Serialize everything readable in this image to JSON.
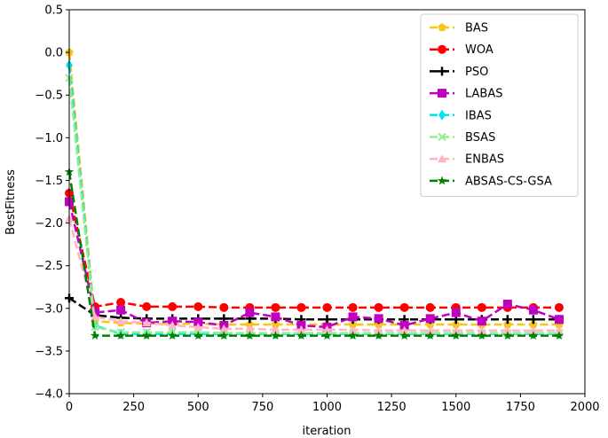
{
  "chart_data": {
    "type": "line",
    "xlabel": "iteration",
    "ylabel": "BestFitness",
    "xlim": [
      0,
      2000
    ],
    "ylim": [
      -4.0,
      0.5
    ],
    "xticks": [
      0,
      250,
      500,
      750,
      1000,
      1250,
      1500,
      1750,
      2000
    ],
    "yticks": [
      0.5,
      0.0,
      -0.5,
      -1.0,
      -1.5,
      -2.0,
      -2.5,
      -3.0,
      -3.5,
      -4.0
    ],
    "xtick_labels": [
      "0",
      "250",
      "500",
      "750",
      "1000",
      "1250",
      "1500",
      "1750",
      "2000"
    ],
    "ytick_labels": [
      "0.5",
      "0.0",
      "−0.5",
      "−1.0",
      "−1.5",
      "−2.0",
      "−2.5",
      "−3.0",
      "−3.5",
      "−4.0"
    ],
    "legend_position": "top-right",
    "grid": false,
    "x": [
      0,
      100,
      200,
      300,
      400,
      500,
      600,
      700,
      800,
      900,
      1000,
      1100,
      1200,
      1300,
      1400,
      1500,
      1600,
      1700,
      1800,
      1900
    ],
    "series": [
      {
        "name": "BAS",
        "color": "#f5c518",
        "marker": "pentagon",
        "values": [
          0.0,
          -3.15,
          -3.17,
          -3.18,
          -3.18,
          -3.18,
          -3.19,
          -3.19,
          -3.19,
          -3.19,
          -3.19,
          -3.19,
          -3.19,
          -3.19,
          -3.19,
          -3.19,
          -3.19,
          -3.19,
          -3.19,
          -3.19
        ]
      },
      {
        "name": "WOA",
        "color": "#ff0000",
        "marker": "circle",
        "values": [
          -1.65,
          -2.98,
          -2.93,
          -2.98,
          -2.98,
          -2.98,
          -2.99,
          -2.99,
          -2.99,
          -2.99,
          -2.99,
          -2.99,
          -2.99,
          -2.99,
          -2.99,
          -2.99,
          -2.99,
          -2.99,
          -2.99,
          -2.99
        ]
      },
      {
        "name": "PSO",
        "color": "#000000",
        "marker": "plus",
        "values": [
          -2.88,
          -3.08,
          -3.11,
          -3.12,
          -3.12,
          -3.12,
          -3.12,
          -3.12,
          -3.12,
          -3.13,
          -3.13,
          -3.13,
          -3.13,
          -3.13,
          -3.13,
          -3.13,
          -3.13,
          -3.13,
          -3.13,
          -3.13
        ]
      },
      {
        "name": "LABAS",
        "color": "#c000c0",
        "marker": "square",
        "values": [
          -1.75,
          -3.05,
          -3.02,
          -3.17,
          -3.15,
          -3.16,
          -3.2,
          -3.05,
          -3.1,
          -3.2,
          -3.22,
          -3.1,
          -3.12,
          -3.2,
          -3.12,
          -3.05,
          -3.15,
          -2.95,
          -3.02,
          -3.13
        ]
      },
      {
        "name": "IBAS",
        "color": "#00e5ee",
        "marker": "diamond",
        "values": [
          -0.15,
          -3.2,
          -3.3,
          -3.3,
          -3.3,
          -3.3,
          -3.3,
          -3.3,
          -3.3,
          -3.3,
          -3.3,
          -3.3,
          -3.3,
          -3.3,
          -3.3,
          -3.3,
          -3.3,
          -3.3,
          -3.3,
          -3.3
        ]
      },
      {
        "name": "BSAS",
        "color": "#90ee90",
        "marker": "x",
        "values": [
          -0.3,
          -3.22,
          -3.28,
          -3.28,
          -3.28,
          -3.28,
          -3.29,
          -3.29,
          -3.29,
          -3.29,
          -3.29,
          -3.29,
          -3.29,
          -3.29,
          -3.29,
          -3.29,
          -3.29,
          -3.29,
          -3.29,
          -3.29
        ]
      },
      {
        "name": "ENBAS",
        "color": "#ffb6c1",
        "marker": "triangle",
        "values": [
          -1.95,
          -3.1,
          -3.15,
          -3.17,
          -3.2,
          -3.22,
          -3.24,
          -3.24,
          -3.25,
          -3.25,
          -3.25,
          -3.25,
          -3.26,
          -3.26,
          -3.26,
          -3.26,
          -3.26,
          -3.26,
          -3.26,
          -3.26
        ]
      },
      {
        "name": "ABSAS-CS-GSA",
        "color": "#008000",
        "marker": "star",
        "values": [
          -1.4,
          -3.32,
          -3.32,
          -3.32,
          -3.32,
          -3.32,
          -3.32,
          -3.32,
          -3.32,
          -3.32,
          -3.32,
          -3.32,
          -3.32,
          -3.32,
          -3.32,
          -3.32,
          -3.32,
          -3.32,
          -3.32,
          -3.32
        ]
      }
    ]
  }
}
